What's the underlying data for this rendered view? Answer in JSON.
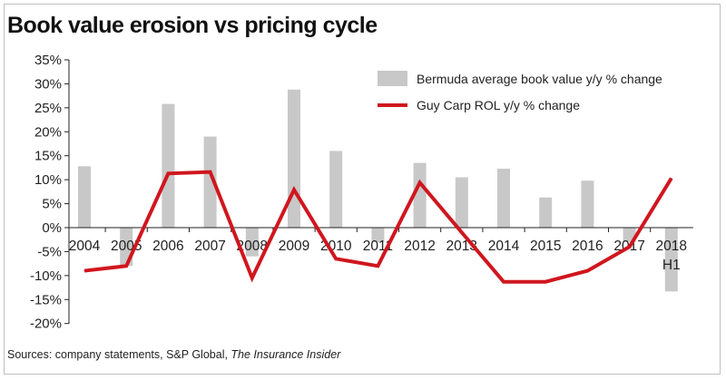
{
  "title": "Book value erosion vs pricing cycle",
  "source": {
    "prefix": "Sources: company statements, S&P Global, ",
    "italic": "The Insurance Insider"
  },
  "colors": {
    "bar": "#c8c8c8",
    "line": "#d0161e",
    "axis": "#222222"
  },
  "chart_data": {
    "type": "bar",
    "categories": [
      "2004",
      "2005",
      "2006",
      "2007",
      "2008",
      "2009",
      "2010",
      "2011",
      "2012",
      "2013",
      "2014",
      "2015",
      "2016",
      "2017",
      "2018"
    ],
    "category_sublabels": [
      "",
      "",
      "",
      "",
      "",
      "",
      "",
      "",
      "",
      "",
      "",
      "",
      "",
      "",
      "H1"
    ],
    "ylim": [
      -20,
      35
    ],
    "yticks": [
      35,
      30,
      25,
      20,
      15,
      10,
      5,
      0,
      -5,
      -10,
      -15,
      -20
    ],
    "ytick_labels": [
      "35%",
      "30%",
      "25%",
      "20%",
      "15%",
      "10%",
      "5%",
      "0%",
      "-5%",
      "-10%",
      "-15%",
      "-20%"
    ],
    "grid": false,
    "legend_position": "top-right",
    "series": [
      {
        "name": "Bermuda average book value y/y % change",
        "type": "bar",
        "values": [
          12.8,
          -8.0,
          25.8,
          19.0,
          -6.0,
          28.8,
          16.0,
          -3.0,
          13.5,
          10.5,
          12.3,
          6.3,
          9.8,
          -3.0,
          -13.3
        ]
      },
      {
        "name": "Guy Carp ROL y/y % change",
        "type": "line",
        "values": [
          -9.0,
          -8.0,
          11.3,
          11.6,
          -10.5,
          7.9,
          -6.5,
          -8.0,
          9.4,
          -1.0,
          -11.3,
          -11.3,
          -9.0,
          -4.0,
          10.3
        ]
      }
    ]
  }
}
